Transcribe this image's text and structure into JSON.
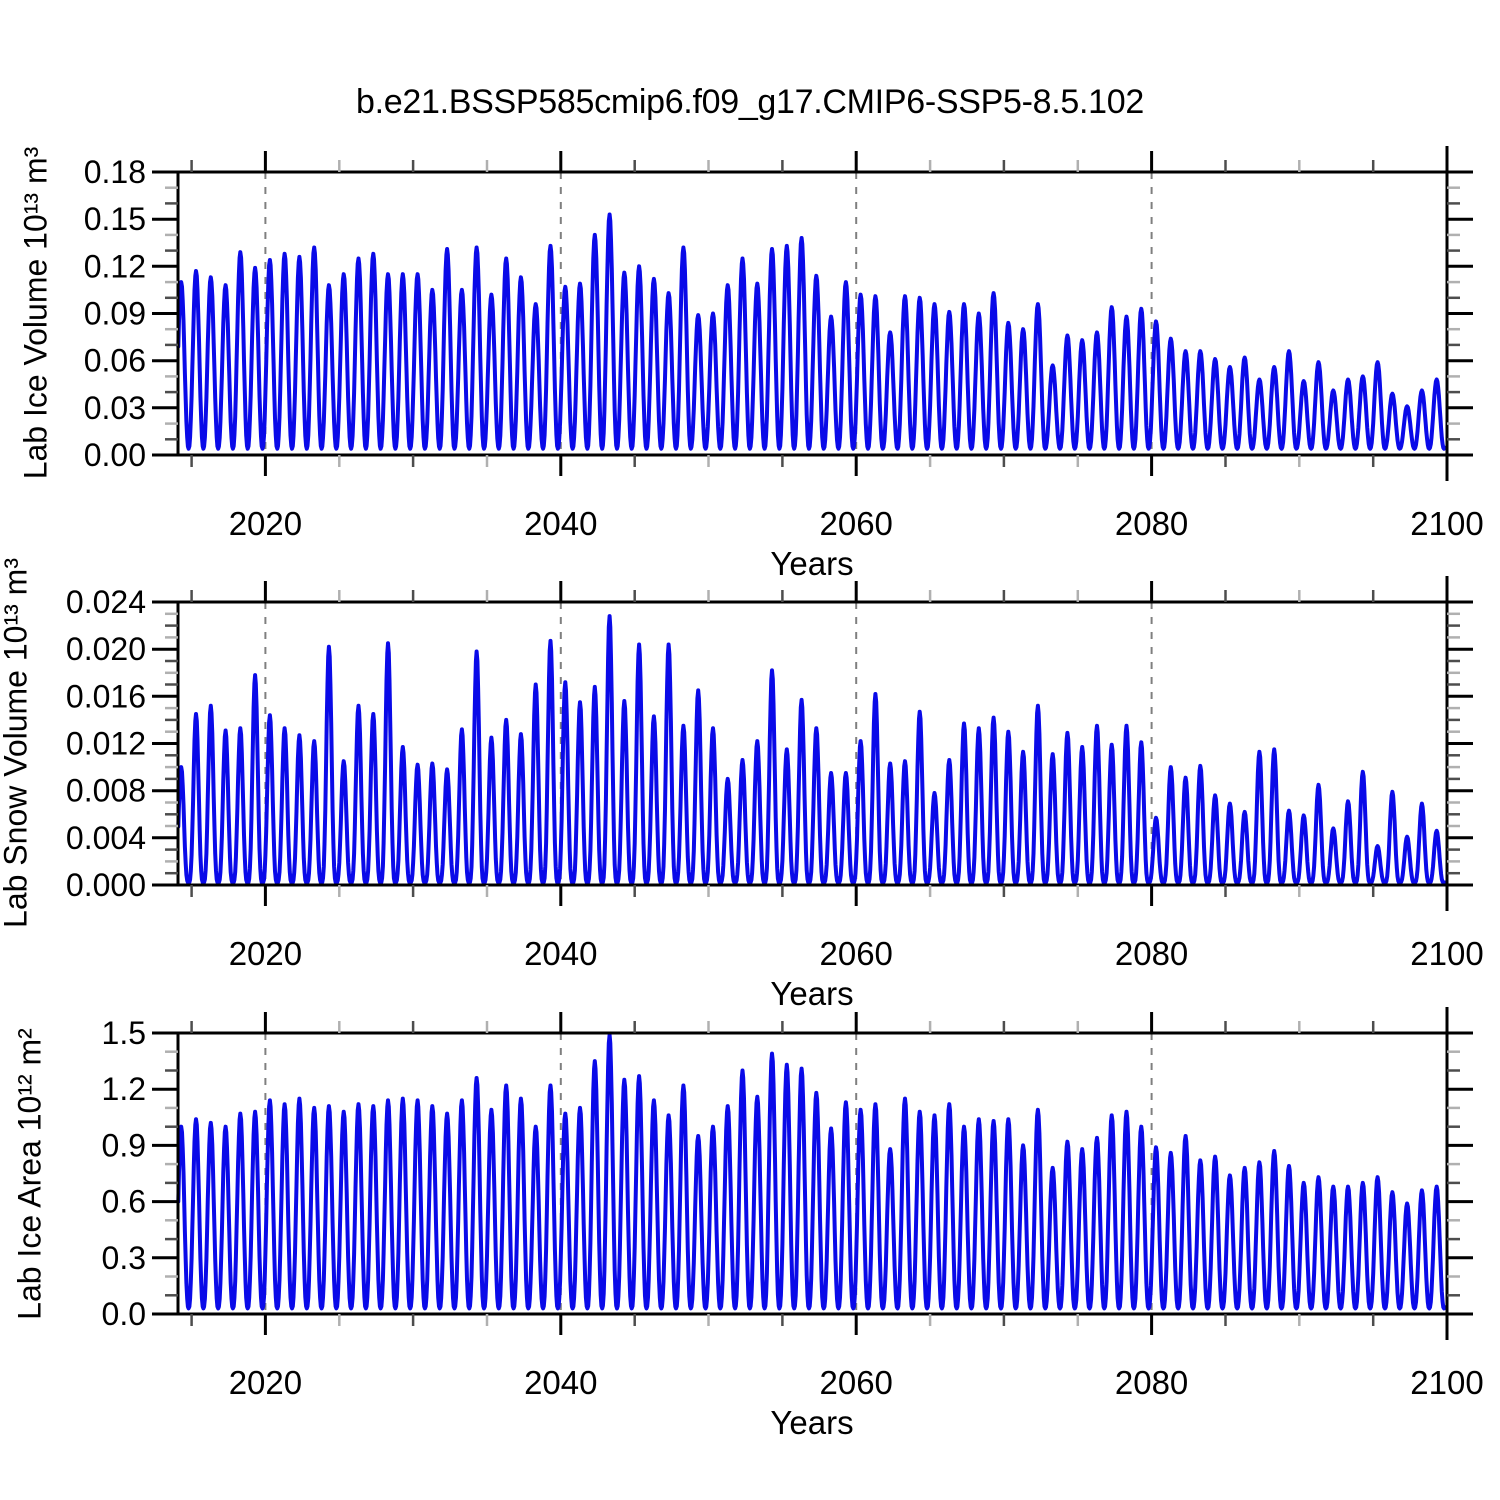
{
  "title": "b.e21.BSSP585cmip6.f09_g17.CMIP6-SSP5-8.5.102",
  "colors": {
    "line": "#0a0ae8",
    "grid": "#7f7f7f",
    "frame": "#000000",
    "minor_tick_dark": "#4d4d4d",
    "minor_tick_light": "#b0b0b0",
    "background": "#ffffff"
  },
  "x_axis": {
    "label": "Years",
    "lim": [
      2014.08,
      2100
    ],
    "major_ticks": [
      2020,
      2040,
      2060,
      2080,
      2100
    ],
    "major_tick_labels": [
      "2020",
      "2040",
      "2060",
      "2080",
      "2100"
    ],
    "minor_tick_step": 5,
    "grid_at": [
      2020,
      2040,
      2060,
      2080
    ]
  },
  "chart_data": [
    {
      "type": "line",
      "name": "lab-ice-volume",
      "ylabel": "Lab Ice Volume 10¹³ m³",
      "ylim": [
        0,
        0.18
      ],
      "y_major_ticks": [
        0.0,
        0.03,
        0.06,
        0.09,
        0.12,
        0.15,
        0.18
      ],
      "y_tick_labels": [
        "0.00",
        "0.03",
        "0.06",
        "0.09",
        "0.12",
        "0.15",
        "0.18"
      ],
      "y_minor_divisions": 3,
      "grid": "vertical-dashed",
      "legend": "none",
      "series": {
        "description": "annual seasonal cycle, one peak per year",
        "start_year": 2014,
        "t_start": 2014.1,
        "t_end": 2099.85,
        "dt": 0.05,
        "peak_phase": 0.3,
        "shape_power": 1.15,
        "annual_min": 0.004,
        "annual_max": [
          0.11,
          0.117,
          0.113,
          0.108,
          0.129,
          0.119,
          0.124,
          0.128,
          0.126,
          0.132,
          0.108,
          0.115,
          0.125,
          0.128,
          0.115,
          0.115,
          0.115,
          0.105,
          0.131,
          0.105,
          0.132,
          0.102,
          0.125,
          0.113,
          0.096,
          0.133,
          0.107,
          0.109,
          0.14,
          0.153,
          0.116,
          0.12,
          0.112,
          0.103,
          0.132,
          0.089,
          0.09,
          0.108,
          0.125,
          0.109,
          0.131,
          0.133,
          0.138,
          0.114,
          0.088,
          0.11,
          0.102,
          0.101,
          0.078,
          0.101,
          0.1,
          0.096,
          0.091,
          0.096,
          0.09,
          0.103,
          0.084,
          0.08,
          0.096,
          0.057,
          0.076,
          0.073,
          0.078,
          0.094,
          0.088,
          0.093,
          0.085,
          0.074,
          0.066,
          0.066,
          0.061,
          0.056,
          0.062,
          0.048,
          0.056,
          0.066,
          0.047,
          0.059,
          0.041,
          0.048,
          0.05,
          0.059,
          0.039,
          0.031,
          0.041,
          0.048
        ]
      }
    },
    {
      "type": "line",
      "name": "lab-snow-volume",
      "ylabel": "Lab Snow Volume 10¹³ m³",
      "ylim": [
        0,
        0.024
      ],
      "y_major_ticks": [
        0.0,
        0.004,
        0.008,
        0.012,
        0.016,
        0.02,
        0.024
      ],
      "y_tick_labels": [
        "0.000",
        "0.004",
        "0.008",
        "0.012",
        "0.016",
        "0.020",
        "0.024"
      ],
      "y_minor_divisions": 4,
      "grid": "vertical-dashed",
      "legend": "none",
      "series": {
        "description": "annual seasonal cycle, one peak per year",
        "start_year": 2014,
        "t_start": 2014.1,
        "t_end": 2099.85,
        "dt": 0.05,
        "peak_phase": 0.3,
        "shape_power": 1.7,
        "annual_min": 0.0002,
        "annual_max": [
          0.01,
          0.0145,
          0.0152,
          0.0131,
          0.0133,
          0.0178,
          0.0144,
          0.0133,
          0.0127,
          0.0122,
          0.0202,
          0.0105,
          0.0152,
          0.0145,
          0.0205,
          0.0117,
          0.0102,
          0.0103,
          0.0098,
          0.0132,
          0.0198,
          0.0125,
          0.014,
          0.0128,
          0.017,
          0.0207,
          0.0172,
          0.0155,
          0.0168,
          0.0228,
          0.0156,
          0.0204,
          0.0143,
          0.0204,
          0.0135,
          0.0165,
          0.0133,
          0.009,
          0.0106,
          0.0122,
          0.0182,
          0.0115,
          0.0157,
          0.0133,
          0.0095,
          0.0095,
          0.0122,
          0.0162,
          0.0103,
          0.0105,
          0.0147,
          0.0078,
          0.0106,
          0.0137,
          0.0133,
          0.0142,
          0.013,
          0.0113,
          0.0152,
          0.0111,
          0.0129,
          0.0117,
          0.0135,
          0.0119,
          0.0135,
          0.0121,
          0.0057,
          0.01,
          0.0091,
          0.0101,
          0.0076,
          0.0069,
          0.0062,
          0.0113,
          0.0115,
          0.0063,
          0.0059,
          0.0085,
          0.0048,
          0.0071,
          0.0096,
          0.0033,
          0.0079,
          0.0041,
          0.0069,
          0.0046
        ]
      }
    },
    {
      "type": "line",
      "name": "lab-ice-area",
      "ylabel": "Lab Ice Area 10¹² m²",
      "ylim": [
        0,
        1.5
      ],
      "y_major_ticks": [
        0.0,
        0.3,
        0.6,
        0.9,
        1.2,
        1.5
      ],
      "y_tick_labels": [
        "0.0",
        "0.3",
        "0.6",
        "0.9",
        "1.2",
        "1.5"
      ],
      "y_minor_divisions": 3,
      "grid": "vertical-dashed",
      "legend": "none",
      "series": {
        "description": "annual seasonal cycle, one peak per year",
        "start_year": 2014,
        "t_start": 2014.1,
        "t_end": 2099.85,
        "dt": 0.05,
        "peak_phase": 0.3,
        "shape_power": 1.25,
        "annual_min": 0.03,
        "annual_max": [
          1.0,
          1.04,
          1.02,
          1.0,
          1.07,
          1.08,
          1.14,
          1.12,
          1.15,
          1.1,
          1.11,
          1.08,
          1.12,
          1.11,
          1.14,
          1.15,
          1.14,
          1.11,
          1.07,
          1.14,
          1.26,
          1.09,
          1.22,
          1.15,
          1.0,
          1.22,
          1.07,
          1.1,
          1.35,
          1.49,
          1.25,
          1.27,
          1.14,
          1.06,
          1.22,
          0.95,
          1.0,
          1.11,
          1.3,
          1.16,
          1.39,
          1.33,
          1.31,
          1.18,
          0.99,
          1.13,
          1.09,
          1.12,
          0.88,
          1.15,
          1.08,
          1.06,
          1.12,
          1.0,
          1.04,
          1.03,
          1.04,
          0.9,
          1.09,
          0.78,
          0.92,
          0.88,
          0.94,
          1.06,
          1.08,
          1.0,
          0.89,
          0.86,
          0.95,
          0.82,
          0.84,
          0.74,
          0.78,
          0.81,
          0.87,
          0.79,
          0.7,
          0.73,
          0.68,
          0.68,
          0.7,
          0.73,
          0.65,
          0.59,
          0.66,
          0.68
        ]
      }
    }
  ]
}
